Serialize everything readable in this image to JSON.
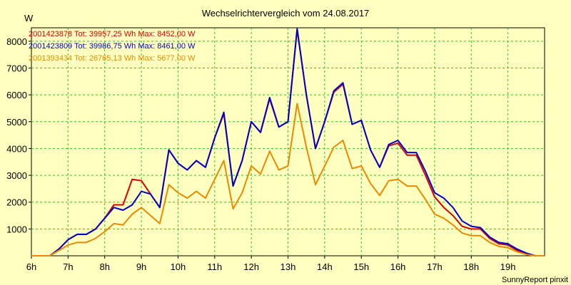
{
  "chart_data": {
    "type": "line",
    "title": "Wechselrichtervergleich vom 24.08.2017",
    "ylabel": "W",
    "xlabel": "",
    "credit": "SunnyReport pinxit",
    "xlim": [
      6,
      20
    ],
    "ylim": [
      0,
      8500
    ],
    "grid": true,
    "legend_position": "top-left",
    "x_ticks": [
      {
        "v": 6,
        "label": "6h"
      },
      {
        "v": 7,
        "label": "7h"
      },
      {
        "v": 8,
        "label": "8h"
      },
      {
        "v": 9,
        "label": "9h"
      },
      {
        "v": 10,
        "label": "10h"
      },
      {
        "v": 11,
        "label": "11h"
      },
      {
        "v": 12,
        "label": "12h"
      },
      {
        "v": 13,
        "label": "13h"
      },
      {
        "v": 14,
        "label": "14h"
      },
      {
        "v": 15,
        "label": "15h"
      },
      {
        "v": 16,
        "label": "16h"
      },
      {
        "v": 17,
        "label": "17h"
      },
      {
        "v": 18,
        "label": "18h"
      },
      {
        "v": 19,
        "label": "19h"
      }
    ],
    "y_ticks": [
      {
        "v": 1000,
        "label": "1000"
      },
      {
        "v": 2000,
        "label": "2000"
      },
      {
        "v": 3000,
        "label": "3000"
      },
      {
        "v": 4000,
        "label": "4000"
      },
      {
        "v": 5000,
        "label": "5000"
      },
      {
        "v": 6000,
        "label": "6000"
      },
      {
        "v": 7000,
        "label": "7000"
      },
      {
        "v": 8000,
        "label": "8000"
      }
    ],
    "x": [
      6.0,
      6.25,
      6.5,
      6.75,
      7.0,
      7.25,
      7.5,
      7.75,
      8.0,
      8.25,
      8.5,
      8.75,
      9.0,
      9.25,
      9.5,
      9.75,
      10.0,
      10.25,
      10.5,
      10.75,
      11.0,
      11.25,
      11.5,
      11.75,
      12.0,
      12.25,
      12.5,
      12.75,
      13.0,
      13.25,
      13.5,
      13.75,
      14.0,
      14.25,
      14.5,
      14.75,
      15.0,
      15.25,
      15.5,
      15.75,
      16.0,
      16.25,
      16.5,
      16.75,
      17.0,
      17.25,
      17.5,
      17.75,
      18.0,
      18.25,
      18.5,
      18.75,
      19.0,
      19.25,
      19.5,
      19.75,
      20.0
    ],
    "series": [
      {
        "name": "2001423878 Tot: 39957,25 Wh Max: 8452,00 W",
        "color": "#dd0000",
        "values": [
          0,
          0,
          0,
          250,
          600,
          800,
          800,
          1000,
          1400,
          1900,
          1900,
          2850,
          2800,
          2300,
          1800,
          3950,
          3450,
          3200,
          3550,
          3300,
          4400,
          5300,
          2600,
          3550,
          5000,
          4600,
          5850,
          4800,
          5000,
          8452,
          6000,
          4000,
          5000,
          6100,
          6400,
          4900,
          5050,
          3950,
          3300,
          4100,
          4200,
          3750,
          3750,
          3000,
          2200,
          1800,
          1500,
          1100,
          1000,
          1000,
          650,
          450,
          400,
          200,
          50,
          0,
          0
        ]
      },
      {
        "name": "2001423809 Tot: 39986,75 Wh Max: 8461,00 W",
        "color": "#0000cc",
        "values": [
          0,
          0,
          0,
          250,
          600,
          800,
          800,
          1000,
          1400,
          1800,
          1700,
          1900,
          2400,
          2300,
          1800,
          3950,
          3450,
          3200,
          3550,
          3300,
          4400,
          5350,
          2600,
          3550,
          5000,
          4600,
          5900,
          4800,
          5000,
          8461,
          6000,
          4000,
          5000,
          6150,
          6450,
          4900,
          5050,
          3950,
          3300,
          4150,
          4300,
          3850,
          3850,
          3150,
          2350,
          2150,
          1800,
          1300,
          1100,
          1050,
          700,
          500,
          450,
          250,
          100,
          0,
          0
        ]
      },
      {
        "name": "2001393434 Tot: 26765,13 Wh Max: 5677,00 W",
        "color": "#ee8800",
        "values": [
          0,
          0,
          0,
          200,
          400,
          500,
          500,
          650,
          900,
          1200,
          1150,
          1550,
          1800,
          1500,
          1200,
          2650,
          2350,
          2150,
          2400,
          2150,
          2850,
          3550,
          1750,
          2350,
          3350,
          3050,
          3900,
          3200,
          3350,
          5677,
          4050,
          2650,
          3350,
          4050,
          4300,
          3250,
          3350,
          2700,
          2250,
          2800,
          2850,
          2600,
          2600,
          2100,
          1550,
          1400,
          1150,
          850,
          750,
          750,
          500,
          350,
          300,
          150,
          50,
          0,
          0
        ]
      }
    ]
  }
}
